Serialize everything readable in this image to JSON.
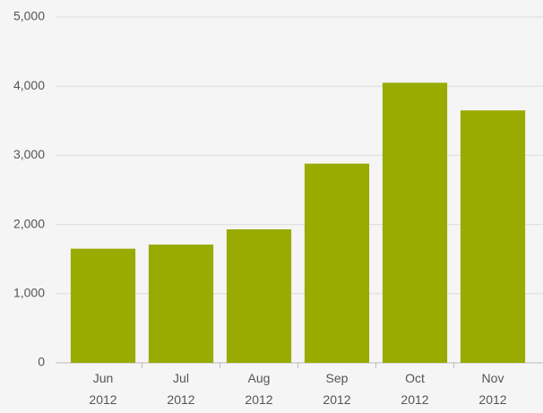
{
  "chart_data": {
    "type": "bar",
    "categories": [
      "Jun 2012",
      "Jul 2012",
      "Aug 2012",
      "Sep 2012",
      "Oct 2012",
      "Nov 2012"
    ],
    "values": [
      1650,
      1710,
      1930,
      2880,
      4050,
      3650
    ],
    "color": "#99aa00",
    "ylim": [
      0,
      5000
    ],
    "yticks": [
      0,
      {
        "value": 1000,
        "label": "1,000"
      },
      {
        "value": 2000,
        "label": "2,000"
      },
      {
        "value": 3000,
        "label": "3,000"
      },
      {
        "value": 4000,
        "label": "4,000"
      },
      {
        "value": 5000,
        "label": "5,000"
      }
    ],
    "grid": true
  }
}
